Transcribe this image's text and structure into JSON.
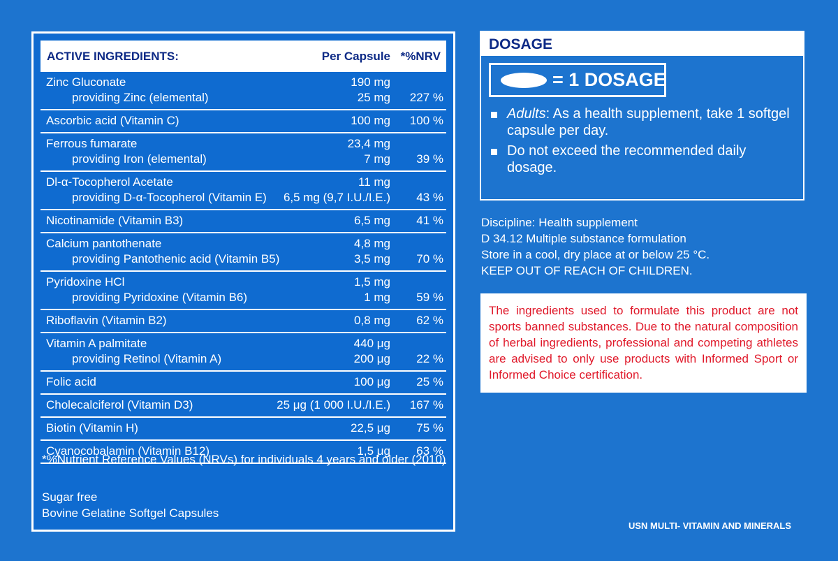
{
  "ingredients_table": {
    "headers": {
      "name": "ACTIVE INGREDIENTS:",
      "per_capsule": "Per Capsule",
      "nrv": "*%NRV"
    },
    "rows": [
      {
        "lines": [
          {
            "name": "Zinc Gluconate",
            "qty": "190 mg",
            "nrv": ""
          },
          {
            "name": "providing Zinc (elemental)",
            "qty": "25 mg",
            "nrv": "227 %"
          }
        ]
      },
      {
        "lines": [
          {
            "name": "Ascorbic acid (Vitamin C)",
            "qty": "100 mg",
            "nrv": "100 %"
          }
        ]
      },
      {
        "lines": [
          {
            "name": "Ferrous fumarate",
            "qty": "23,4 mg",
            "nrv": ""
          },
          {
            "name": "providing Iron (elemental)",
            "qty": "7 mg",
            "nrv": "39 %"
          }
        ]
      },
      {
        "lines": [
          {
            "name": "Dl-α-Tocopherol Acetate",
            "qty": "11 mg",
            "nrv": ""
          },
          {
            "name": "providing D-α-Tocopherol (Vitamin E)",
            "qty": "6,5 mg  (9,7 I.U./I.E.)",
            "nrv": "43 %"
          }
        ]
      },
      {
        "lines": [
          {
            "name": "Nicotinamide (Vitamin B3)",
            "qty": "6,5 mg",
            "nrv": "41 %"
          }
        ]
      },
      {
        "lines": [
          {
            "name": "Calcium pantothenate",
            "qty": "4,8 mg",
            "nrv": ""
          },
          {
            "name": "providing Pantothenic acid (Vitamin B5)",
            "qty": "3,5 mg",
            "nrv": "70 %"
          }
        ]
      },
      {
        "lines": [
          {
            "name": "Pyridoxine HCl",
            "qty": "1,5 mg",
            "nrv": ""
          },
          {
            "name": "providing Pyridoxine (Vitamin B6)",
            "qty": "1 mg",
            "nrv": "59 %"
          }
        ]
      },
      {
        "lines": [
          {
            "name": "Riboflavin (Vitamin B2)",
            "qty": "0,8 mg",
            "nrv": "62 %"
          }
        ]
      },
      {
        "lines": [
          {
            "name": "Vitamin A palmitate",
            "qty": "440 μg",
            "nrv": ""
          },
          {
            "name": "providing Retinol (Vitamin A)",
            "qty": "200 μg",
            "nrv": "22 %"
          }
        ]
      },
      {
        "lines": [
          {
            "name": "Folic acid",
            "qty": "100 μg",
            "nrv": "25 %"
          }
        ]
      },
      {
        "lines": [
          {
            "name": "Cholecalciferol (Vitamin D3)",
            "qty": "25 μg (1 000 I.U./I.E.)",
            "nrv": "167 %"
          }
        ]
      },
      {
        "lines": [
          {
            "name": "Biotin (Vitamin H)",
            "qty": "22,5 μg",
            "nrv": "75 %"
          }
        ]
      },
      {
        "lines": [
          {
            "name": "Cyanocobalamin (Vitamin B12)",
            "qty": "1,5 μg",
            "nrv": "63 %"
          }
        ]
      }
    ],
    "footnote": "*%Nutrient Reference Values (NRVs) for individuals 4 years and older (2010)",
    "extra_lines": [
      "Sugar free",
      "Bovine Gelatine Softgel Capsules"
    ]
  },
  "dosage": {
    "title": "DOSAGE",
    "dose_label": "= 1 DOSAGE",
    "bullet1_lead": "Adults",
    "bullet1_rest": ": As a health supplement, take 1 softgel capsule per day.",
    "bullet2": "Do not exceed the recommended daily dosage."
  },
  "info_lines": [
    "Discipline: Health supplement",
    "D 34.12 Multiple substance formulation",
    "Store in a cool, dry place at or below 25 °C.",
    "KEEP OUT OF REACH OF CHILDREN."
  ],
  "warning": "The ingredients used to formulate this product are not sports banned substances. Due to the natural composition of herbal ingredients, professional and competing athletes are advised to only use products with Informed Sport or Informed Choice certification.",
  "product_name": "USN MULTI- VITAMIN AND MINERALS",
  "colors": {
    "background": "#1d74cf",
    "heading_text": "#0d2a86",
    "warning_text": "#e0192a"
  },
  "icons": {
    "capsule": "capsule-icon",
    "bullet": "square-bullet-icon"
  }
}
